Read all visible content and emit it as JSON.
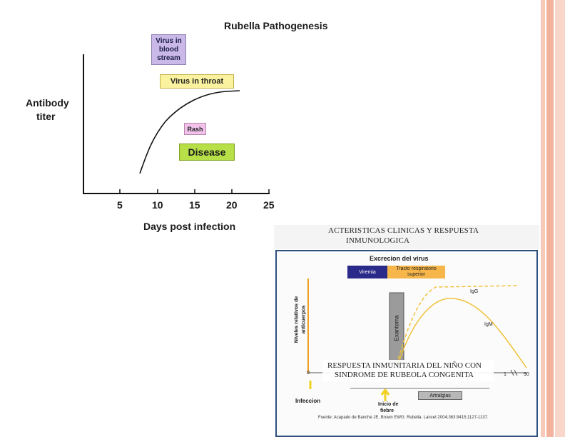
{
  "slide": {
    "accent_stripes": [
      "#f6c9b8",
      "#f3b29c",
      "#f8d7ca"
    ]
  },
  "chart1": {
    "title": "Rubella Pathogenesis",
    "ylabel_line1": "Antibody",
    "ylabel_line2": "titer",
    "xlabel": "Days post infection",
    "xticks": [
      "5",
      "10",
      "15",
      "20",
      "25"
    ],
    "boxes": {
      "virus_blood_l1": "Virus in",
      "virus_blood_l2": "blood",
      "virus_blood_l3": "stream",
      "virus_throat": "Virus in throat",
      "rash": "Rash",
      "disease": "Disease"
    },
    "colors": {
      "blood": "#c9b8e8",
      "throat": "#fbf2a0",
      "rash": "#f2c2ea",
      "disease": "#b7e048"
    }
  },
  "chart2": {
    "heading_l1": "ACTERISTICAS CLINICAS Y RESPUESTA",
    "heading_l2": "INMUNOLOGICA",
    "title": "Excrecion del virus",
    "viremia": "Viremia",
    "tracto_l1": "Tracto respiratorio",
    "tracto_l2": "superior",
    "ylabel_l1": "Niveles relativos de",
    "ylabel_l2": "anticuerpos",
    "exantema": "Exantema",
    "igg": "IgG",
    "igm": "IgM",
    "overlay_l1": "RESPUESTA INMUNITARIA DEL NIÑO CON",
    "overlay_l2": "SINDROME DE RUBEOLA CONGENITA",
    "tick_start": "0",
    "tick_end": "90",
    "tick_mid": "1",
    "artralgias": "Artralgias",
    "infeccion": "Infeccion",
    "inicio_l1": "Inicio de",
    "inicio_l2": "fiebre",
    "source": "Fuente: Acapado de Banche JE, Brown EWG. Rubella. Lancet 2004;363:9415;1127-1137."
  }
}
